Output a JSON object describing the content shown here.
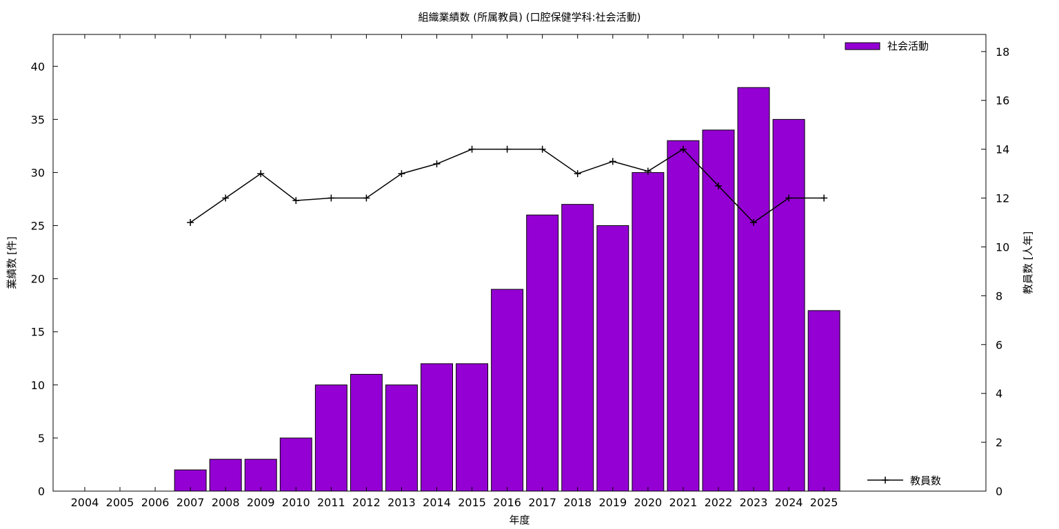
{
  "chart_data": {
    "type": "bar",
    "title": "組織業績数 (所属教員) (口腔保健学科:社会活動)",
    "xlabel": "年度",
    "ylabel": "業績数 [件]",
    "y2label": "教員数 [人年]",
    "categories": [
      "2004",
      "2005",
      "2006",
      "2007",
      "2008",
      "2009",
      "2010",
      "2011",
      "2012",
      "2013",
      "2014",
      "2015",
      "2016",
      "2017",
      "2018",
      "2019",
      "2020",
      "2021",
      "2022",
      "2023",
      "2024",
      "2025"
    ],
    "series": [
      {
        "name": "社会活動",
        "type": "bar",
        "axis": "left",
        "color": "#9400D3",
        "values": [
          null,
          null,
          null,
          2,
          3,
          3,
          5,
          10,
          11,
          10,
          12,
          12,
          19,
          26,
          27,
          25,
          30,
          33,
          34,
          38,
          35,
          17
        ]
      },
      {
        "name": "教員数",
        "type": "line",
        "axis": "right",
        "color": "#000000",
        "values": [
          null,
          null,
          null,
          11,
          12,
          13,
          11.9,
          12,
          12,
          13,
          13.4,
          14,
          14,
          14,
          13,
          13.5,
          13.1,
          14,
          12.5,
          11,
          12,
          12
        ]
      }
    ],
    "ylim": [
      0,
      43
    ],
    "y2lim": [
      0,
      18.7
    ],
    "yticks": [
      0,
      5,
      10,
      15,
      20,
      25,
      30,
      35,
      40
    ],
    "y2ticks": [
      0,
      2,
      4,
      6,
      8,
      10,
      12,
      14,
      16,
      18
    ],
    "legend_position": "top-right (bars), bottom-right (line)",
    "grid": false
  }
}
